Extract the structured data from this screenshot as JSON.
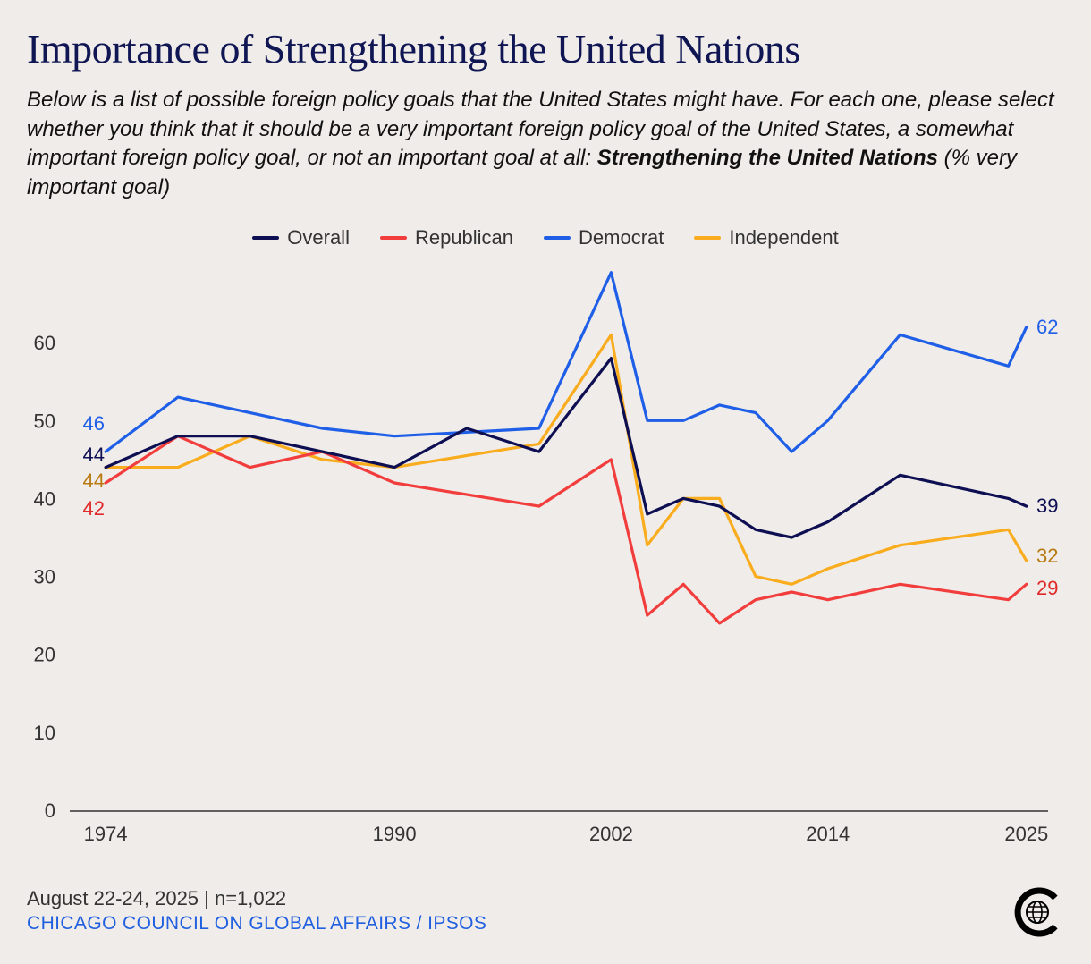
{
  "title": "Importance of Strengthening the United Nations",
  "subtitle": {
    "text": "Below is a list of possible foreign policy goals that the United States might have. For each one, please select whether you think that it should be a very important foreign policy goal of the United States, a somewhat important foreign policy goal, or not an important goal at all: ",
    "bold": "Strengthening the United Nations",
    "suffix": " (% very important goal)"
  },
  "footer": {
    "date": "August 22-24, 2025 | n=1,022",
    "source": "CHICAGO COUNCIL ON GLOBAL AFFAIRS / IPSOS"
  },
  "logo": {
    "icon": "council-globe-logo-icon"
  },
  "chart_data": {
    "type": "line",
    "title": "Importance of Strengthening the United Nations",
    "xlabel": "",
    "ylabel": "",
    "xlim": [
      1973.5,
      2026
    ],
    "ylim": [
      0,
      70
    ],
    "x_ticks": [
      1974,
      1990,
      2002,
      2014,
      2025
    ],
    "y_ticks": [
      0,
      10,
      20,
      30,
      40,
      50,
      60
    ],
    "grid": false,
    "legend": "top-center",
    "series": [
      {
        "name": "Overall",
        "color": "#0d0f52",
        "x": [
          1974,
          1978,
          1982,
          1986,
          1990,
          1994,
          1998,
          2002,
          2004,
          2006,
          2008,
          2010,
          2012,
          2014,
          2018,
          2024,
          2025
        ],
        "values": [
          44,
          48,
          48,
          46,
          44,
          49,
          46,
          58,
          38,
          40,
          39,
          36,
          35,
          37,
          43,
          40,
          39
        ]
      },
      {
        "name": "Republican",
        "color": "#f23d3d",
        "x": [
          1974,
          1978,
          1982,
          1986,
          1990,
          1998,
          2002,
          2004,
          2006,
          2008,
          2010,
          2012,
          2014,
          2018,
          2024,
          2025
        ],
        "values": [
          42,
          48,
          44,
          46,
          42,
          39,
          45,
          25,
          29,
          24,
          27,
          28,
          27,
          29,
          27,
          29
        ]
      },
      {
        "name": "Democrat",
        "color": "#1f5fe8",
        "x": [
          1974,
          1978,
          1986,
          1990,
          1998,
          2002,
          2004,
          2006,
          2008,
          2010,
          2012,
          2014,
          2018,
          2024,
          2025
        ],
        "values": [
          46,
          53,
          49,
          48,
          49,
          69,
          50,
          50,
          52,
          51,
          46,
          50,
          61,
          57,
          62
        ]
      },
      {
        "name": "Independent",
        "color": "#f9ad1e",
        "x": [
          1974,
          1978,
          1982,
          1986,
          1990,
          1998,
          2002,
          2004,
          2006,
          2008,
          2010,
          2012,
          2014,
          2018,
          2024,
          2025
        ],
        "values": [
          44,
          44,
          48,
          45,
          44,
          47,
          61,
          34,
          40,
          40,
          30,
          29,
          31,
          34,
          36,
          32
        ]
      }
    ],
    "start_labels": [
      {
        "series": "Democrat",
        "text": "46",
        "color": "#1f5fe8"
      },
      {
        "series": "Overall",
        "text": "44",
        "color": "#0d0f52"
      },
      {
        "series": "Independent",
        "text": "44",
        "color": "#b87a10"
      },
      {
        "series": "Republican",
        "text": "42",
        "color": "#e02a2a"
      }
    ],
    "end_labels": [
      {
        "series": "Democrat",
        "text": "62",
        "color": "#1f5fe8"
      },
      {
        "series": "Overall",
        "text": "39",
        "color": "#0d0f52"
      },
      {
        "series": "Independent",
        "text": "32",
        "color": "#b87a10"
      },
      {
        "series": "Republican",
        "text": "29",
        "color": "#e02a2a"
      }
    ]
  }
}
